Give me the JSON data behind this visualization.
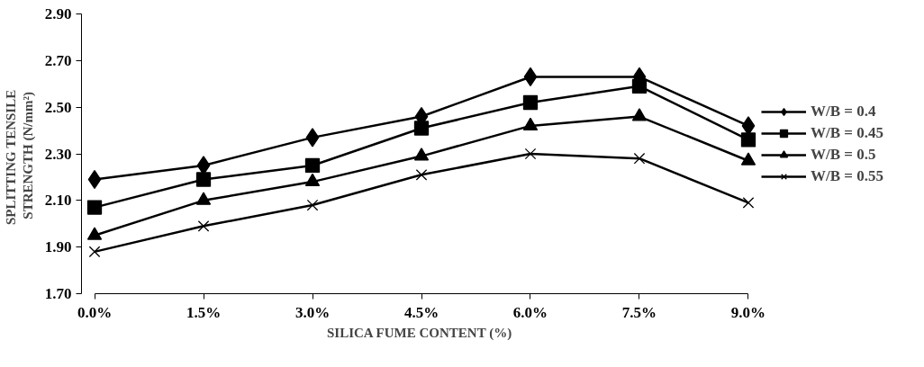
{
  "chart_data": {
    "type": "line",
    "xlabel": "SILICA FUME  CONTENT (%)",
    "ylabel": "SPLITTING   TENSILE\nSTRENGTH  (N/mm²)",
    "x": [
      0,
      1.5,
      3,
      4.5,
      6,
      7.5,
      9
    ],
    "xlim": [
      0,
      9
    ],
    "xticks": [
      {
        "value": 0,
        "label": "0.0%"
      },
      {
        "value": 1.5,
        "label": "1.5%"
      },
      {
        "value": 3,
        "label": "3.0%"
      },
      {
        "value": 4.5,
        "label": "4.5%"
      },
      {
        "value": 6,
        "label": "6.0%"
      },
      {
        "value": 7.5,
        "label": "7.5%"
      },
      {
        "value": 9,
        "label": "9.0%"
      }
    ],
    "ylim": [
      1.7,
      2.9
    ],
    "yticks": [
      {
        "value": 1.7,
        "label": "1.70"
      },
      {
        "value": 1.9,
        "label": "1.90"
      },
      {
        "value": 2.1,
        "label": "2.10"
      },
      {
        "value": 2.3,
        "label": "2.30"
      },
      {
        "value": 2.5,
        "label": "2.50"
      },
      {
        "value": 2.7,
        "label": "2.70"
      },
      {
        "value": 2.9,
        "label": "2.90"
      }
    ],
    "grid": false,
    "legend": "right",
    "line_style": "solid",
    "series": [
      {
        "name": "W/B = 0.4",
        "color": "#000000",
        "marker": "diamond",
        "values": [
          2.19,
          2.25,
          2.37,
          2.46,
          2.63,
          2.63,
          2.42
        ]
      },
      {
        "name": "W/B = 0.45",
        "color": "#000000",
        "marker": "square",
        "values": [
          2.07,
          2.19,
          2.25,
          2.41,
          2.52,
          2.59,
          2.36
        ]
      },
      {
        "name": "W/B = 0.5",
        "color": "#000000",
        "marker": "triangle",
        "values": [
          1.95,
          2.1,
          2.18,
          2.29,
          2.42,
          2.46,
          2.27
        ]
      },
      {
        "name": "W/B = 0.55",
        "color": "#000000",
        "marker": "cross",
        "values": [
          1.88,
          1.99,
          2.08,
          2.21,
          2.3,
          2.28,
          2.09
        ]
      }
    ]
  }
}
